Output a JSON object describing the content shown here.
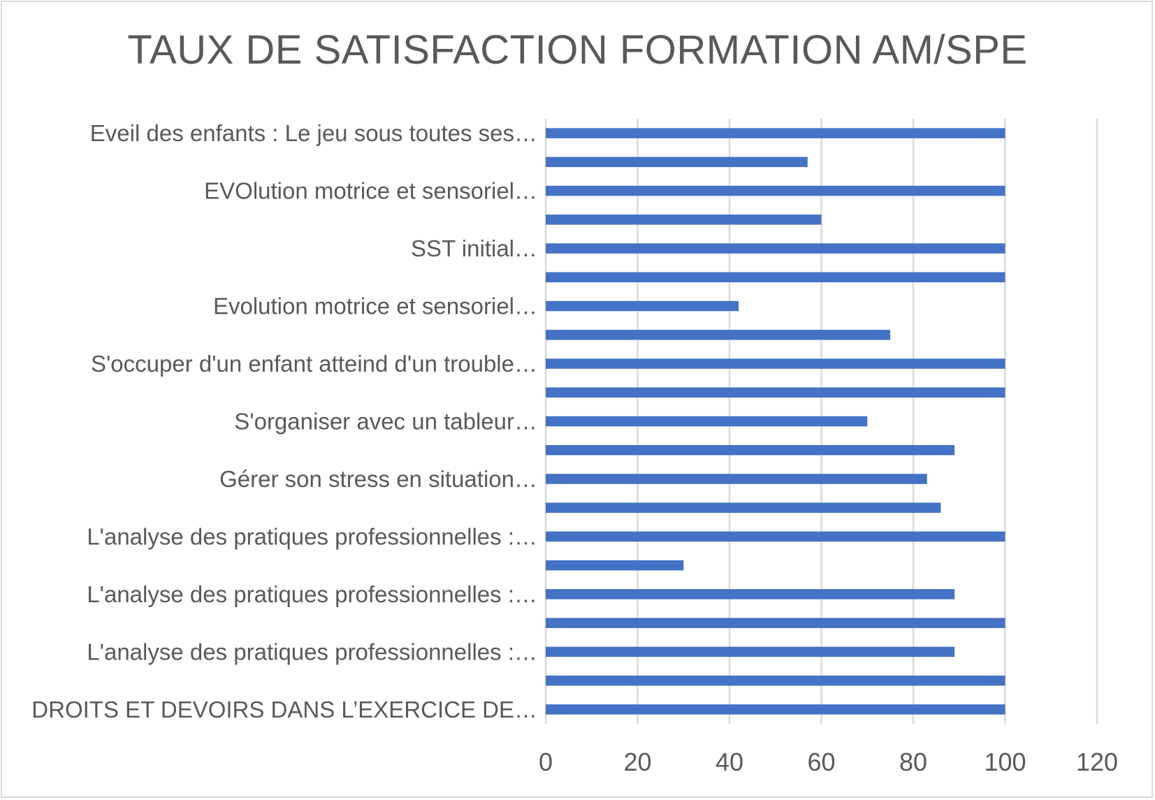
{
  "chart_data": {
    "type": "bar",
    "orientation": "horizontal",
    "title": "TAUX DE SATISFACTION FORMATION AM/SPE",
    "xlabel": "",
    "ylabel": "",
    "xlim": [
      0,
      120
    ],
    "x_ticks": [
      "0",
      "20",
      "40",
      "60",
      "80",
      "100",
      "120"
    ],
    "grid": true,
    "legend": "none",
    "bar_color": "#4472C4",
    "categories": [
      "Eveil des enfants : Le jeu sous toutes ses…",
      "",
      "EVOlution motrice et sensoriel…",
      "",
      "SST initial…",
      "",
      "Evolution motrice et sensoriel…",
      "",
      "S'occuper d'un enfant atteind d'un trouble…",
      "",
      "S'organiser avec un tableur…",
      "",
      "Gérer son stress en situation…",
      "",
      "L'analyse des pratiques professionnelles :…",
      "",
      "L'analyse des pratiques professionnelles :…",
      "",
      "L'analyse des pratiques professionnelles :…",
      "",
      "DROITS ET DEVOIRS DANS L’EXERCICE DE…"
    ],
    "values": [
      100,
      57,
      100,
      60,
      100,
      100,
      42,
      75,
      100,
      100,
      70,
      89,
      83,
      86,
      100,
      30,
      89,
      100,
      89,
      100,
      100
    ]
  }
}
